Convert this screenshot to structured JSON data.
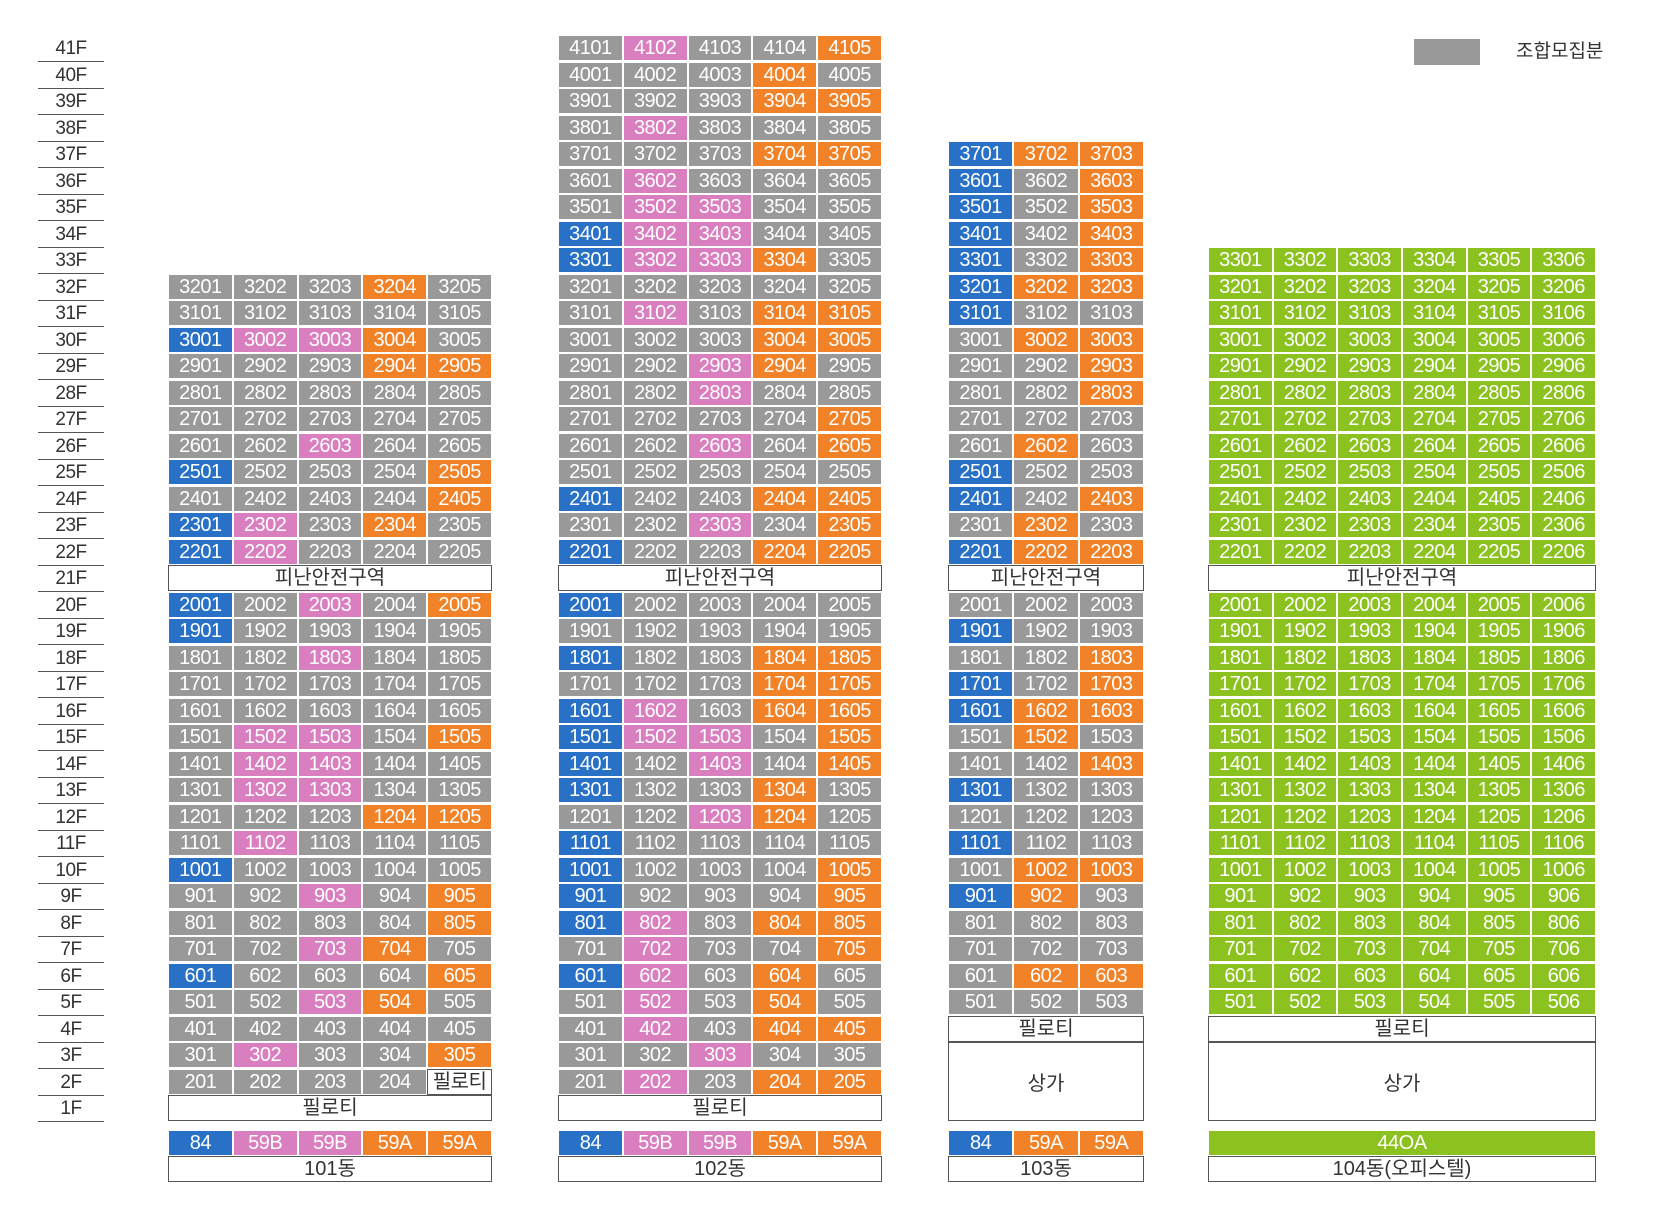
{
  "legend": {
    "label": "조합모집분",
    "color": "#999999"
  },
  "floor_labels": [
    "1F",
    "2F",
    "3F",
    "4F",
    "5F",
    "6F",
    "7F",
    "8F",
    "9F",
    "10F",
    "11F",
    "12F",
    "13F",
    "14F",
    "15F",
    "16F",
    "17F",
    "18F",
    "19F",
    "20F",
    "21F",
    "22F",
    "23F",
    "24F",
    "25F",
    "26F",
    "27F",
    "28F",
    "29F",
    "30F",
    "31F",
    "32F",
    "33F",
    "34F",
    "35F",
    "36F",
    "37F",
    "38F",
    "39F",
    "40F",
    "41F"
  ],
  "colors": {
    "gray": "#999999",
    "blue": "#2871c6",
    "pink": "#d97fc0",
    "orange": "#f28228",
    "green": "#8cc21f"
  },
  "chart_data": {
    "type": "table",
    "title": "",
    "buildings": [
      {
        "name": "101동",
        "columns": 5,
        "unit_types": [
          {
            "label": "84",
            "color": "blue"
          },
          {
            "label": "59B",
            "color": "pink"
          },
          {
            "label": "59B",
            "color": "pink"
          },
          {
            "label": "59A",
            "color": "orange"
          },
          {
            "label": "59A",
            "color": "orange"
          }
        ],
        "refuge_floor": 21,
        "refuge_label": "피난안전구역",
        "ground": [
          {
            "floor": 1,
            "label": "필로티"
          }
        ],
        "floors": {
          "2": [
            "gray",
            "gray",
            "gray",
            "gray",
            "white"
          ],
          "3": [
            "gray",
            "pink",
            "gray",
            "gray",
            "orange"
          ],
          "4": [
            "gray",
            "gray",
            "gray",
            "gray",
            "gray"
          ],
          "5": [
            "gray",
            "gray",
            "pink",
            "orange",
            "gray"
          ],
          "6": [
            "blue",
            "gray",
            "gray",
            "gray",
            "orange"
          ],
          "7": [
            "gray",
            "gray",
            "pink",
            "orange",
            "gray"
          ],
          "8": [
            "gray",
            "gray",
            "gray",
            "gray",
            "orange"
          ],
          "9": [
            "gray",
            "gray",
            "pink",
            "gray",
            "orange"
          ],
          "10": [
            "blue",
            "gray",
            "gray",
            "gray",
            "gray"
          ],
          "11": [
            "gray",
            "pink",
            "gray",
            "gray",
            "gray"
          ],
          "12": [
            "gray",
            "gray",
            "gray",
            "orange",
            "orange"
          ],
          "13": [
            "gray",
            "pink",
            "pink",
            "gray",
            "gray"
          ],
          "14": [
            "gray",
            "pink",
            "pink",
            "gray",
            "gray"
          ],
          "15": [
            "gray",
            "pink",
            "pink",
            "gray",
            "orange"
          ],
          "16": [
            "gray",
            "gray",
            "gray",
            "gray",
            "gray"
          ],
          "17": [
            "gray",
            "gray",
            "gray",
            "gray",
            "gray"
          ],
          "18": [
            "gray",
            "gray",
            "pink",
            "gray",
            "gray"
          ],
          "19": [
            "blue",
            "gray",
            "gray",
            "gray",
            "gray"
          ],
          "20": [
            "blue",
            "gray",
            "pink",
            "gray",
            "orange"
          ],
          "22": [
            "blue",
            "pink",
            "gray",
            "gray",
            "gray"
          ],
          "23": [
            "blue",
            "pink",
            "gray",
            "orange",
            "gray"
          ],
          "24": [
            "gray",
            "gray",
            "gray",
            "gray",
            "orange"
          ],
          "25": [
            "blue",
            "gray",
            "gray",
            "gray",
            "orange"
          ],
          "26": [
            "gray",
            "gray",
            "pink",
            "gray",
            "gray"
          ],
          "27": [
            "gray",
            "gray",
            "gray",
            "gray",
            "gray"
          ],
          "28": [
            "gray",
            "gray",
            "gray",
            "gray",
            "gray"
          ],
          "29": [
            "gray",
            "gray",
            "gray",
            "orange",
            "orange"
          ],
          "30": [
            "blue",
            "pink",
            "pink",
            "orange",
            "gray"
          ],
          "31": [
            "gray",
            "gray",
            "gray",
            "gray",
            "gray"
          ],
          "32": [
            "gray",
            "gray",
            "gray",
            "orange",
            "gray"
          ]
        },
        "text_overrides": {
          "2-5": "필로티"
        }
      },
      {
        "name": "102동",
        "columns": 5,
        "unit_types": [
          {
            "label": "84",
            "color": "blue"
          },
          {
            "label": "59B",
            "color": "pink"
          },
          {
            "label": "59B",
            "color": "pink"
          },
          {
            "label": "59A",
            "color": "orange"
          },
          {
            "label": "59A",
            "color": "orange"
          }
        ],
        "refuge_floor": 21,
        "refuge_label": "피난안전구역",
        "ground": [
          {
            "floor": 1,
            "label": "필로티"
          }
        ],
        "floors": {
          "2": [
            "gray",
            "pink",
            "gray",
            "orange",
            "orange"
          ],
          "3": [
            "gray",
            "gray",
            "pink",
            "gray",
            "gray"
          ],
          "4": [
            "gray",
            "pink",
            "gray",
            "orange",
            "orange"
          ],
          "5": [
            "gray",
            "pink",
            "gray",
            "orange",
            "gray"
          ],
          "6": [
            "blue",
            "pink",
            "gray",
            "orange",
            "gray"
          ],
          "7": [
            "gray",
            "pink",
            "gray",
            "gray",
            "orange"
          ],
          "8": [
            "blue",
            "pink",
            "gray",
            "orange",
            "orange"
          ],
          "9": [
            "blue",
            "gray",
            "gray",
            "gray",
            "orange"
          ],
          "10": [
            "blue",
            "gray",
            "gray",
            "gray",
            "orange"
          ],
          "11": [
            "blue",
            "gray",
            "gray",
            "gray",
            "gray"
          ],
          "12": [
            "gray",
            "gray",
            "pink",
            "orange",
            "gray"
          ],
          "13": [
            "blue",
            "gray",
            "gray",
            "orange",
            "gray"
          ],
          "14": [
            "blue",
            "gray",
            "pink",
            "gray",
            "orange"
          ],
          "15": [
            "blue",
            "pink",
            "pink",
            "gray",
            "orange"
          ],
          "16": [
            "blue",
            "pink",
            "gray",
            "orange",
            "orange"
          ],
          "17": [
            "gray",
            "gray",
            "gray",
            "orange",
            "orange"
          ],
          "18": [
            "blue",
            "gray",
            "gray",
            "orange",
            "orange"
          ],
          "19": [
            "gray",
            "gray",
            "gray",
            "gray",
            "gray"
          ],
          "20": [
            "blue",
            "gray",
            "gray",
            "gray",
            "gray"
          ],
          "22": [
            "blue",
            "gray",
            "gray",
            "orange",
            "orange"
          ],
          "23": [
            "gray",
            "gray",
            "pink",
            "gray",
            "orange"
          ],
          "24": [
            "blue",
            "gray",
            "gray",
            "orange",
            "orange"
          ],
          "25": [
            "gray",
            "gray",
            "gray",
            "gray",
            "gray"
          ],
          "26": [
            "gray",
            "gray",
            "pink",
            "gray",
            "orange"
          ],
          "27": [
            "gray",
            "gray",
            "gray",
            "gray",
            "orange"
          ],
          "28": [
            "gray",
            "gray",
            "pink",
            "gray",
            "gray"
          ],
          "29": [
            "gray",
            "gray",
            "pink",
            "orange",
            "gray"
          ],
          "30": [
            "gray",
            "gray",
            "gray",
            "orange",
            "orange"
          ],
          "31": [
            "gray",
            "pink",
            "gray",
            "orange",
            "orange"
          ],
          "32": [
            "gray",
            "gray",
            "gray",
            "gray",
            "gray"
          ],
          "33": [
            "blue",
            "pink",
            "pink",
            "orange",
            "gray"
          ],
          "34": [
            "blue",
            "pink",
            "pink",
            "gray",
            "gray"
          ],
          "35": [
            "gray",
            "pink",
            "pink",
            "gray",
            "gray"
          ],
          "36": [
            "gray",
            "pink",
            "gray",
            "gray",
            "gray"
          ],
          "37": [
            "gray",
            "gray",
            "gray",
            "orange",
            "orange"
          ],
          "38": [
            "gray",
            "pink",
            "gray",
            "gray",
            "gray"
          ],
          "39": [
            "gray",
            "gray",
            "gray",
            "orange",
            "orange"
          ],
          "40": [
            "gray",
            "gray",
            "gray",
            "orange",
            "gray"
          ],
          "41": [
            "gray",
            "pink",
            "gray",
            "gray",
            "orange"
          ]
        },
        "text_overrides": {}
      },
      {
        "name": "103동",
        "columns": 3,
        "unit_types": [
          {
            "label": "84",
            "color": "blue"
          },
          {
            "label": "59A",
            "color": "orange"
          },
          {
            "label": "59A",
            "color": "orange"
          }
        ],
        "refuge_floor": 21,
        "refuge_label": "피난안전구역",
        "ground": [
          {
            "floor": 4,
            "label": "필로티"
          },
          {
            "floor": 1,
            "span": 3,
            "label": "상가"
          }
        ],
        "floors": {
          "5": [
            "gray",
            "gray",
            "gray"
          ],
          "6": [
            "gray",
            "orange",
            "orange"
          ],
          "7": [
            "gray",
            "gray",
            "gray"
          ],
          "8": [
            "gray",
            "gray",
            "gray"
          ],
          "9": [
            "blue",
            "orange",
            "gray"
          ],
          "10": [
            "gray",
            "orange",
            "orange"
          ],
          "11": [
            "blue",
            "gray",
            "gray"
          ],
          "12": [
            "gray",
            "gray",
            "gray"
          ],
          "13": [
            "blue",
            "gray",
            "gray"
          ],
          "14": [
            "gray",
            "gray",
            "orange"
          ],
          "15": [
            "gray",
            "orange",
            "gray"
          ],
          "16": [
            "blue",
            "orange",
            "orange"
          ],
          "17": [
            "blue",
            "gray",
            "orange"
          ],
          "18": [
            "gray",
            "gray",
            "orange"
          ],
          "19": [
            "blue",
            "gray",
            "gray"
          ],
          "20": [
            "gray",
            "gray",
            "gray"
          ],
          "22": [
            "blue",
            "orange",
            "orange"
          ],
          "23": [
            "gray",
            "orange",
            "gray"
          ],
          "24": [
            "blue",
            "gray",
            "orange"
          ],
          "25": [
            "blue",
            "gray",
            "gray"
          ],
          "26": [
            "gray",
            "orange",
            "gray"
          ],
          "27": [
            "gray",
            "gray",
            "gray"
          ],
          "28": [
            "gray",
            "gray",
            "orange"
          ],
          "29": [
            "gray",
            "gray",
            "orange"
          ],
          "30": [
            "gray",
            "orange",
            "orange"
          ],
          "31": [
            "blue",
            "gray",
            "gray"
          ],
          "32": [
            "blue",
            "orange",
            "orange"
          ],
          "33": [
            "blue",
            "gray",
            "orange"
          ],
          "34": [
            "blue",
            "gray",
            "orange"
          ],
          "35": [
            "blue",
            "gray",
            "orange"
          ],
          "36": [
            "blue",
            "gray",
            "orange"
          ],
          "37": [
            "blue",
            "orange",
            "orange"
          ]
        },
        "text_overrides": {}
      },
      {
        "name": "104동(오피스텔)",
        "columns": 6,
        "unit_types": [
          {
            "label": "44OA",
            "color": "green",
            "span": 6
          }
        ],
        "refuge_floor": 21,
        "refuge_label": "피난안전구역",
        "ground": [
          {
            "floor": 4,
            "label": "필로티"
          },
          {
            "floor": 1,
            "span": 3,
            "label": "상가"
          }
        ],
        "all_green_from": 5,
        "all_green_to": 33,
        "floors": {},
        "text_overrides": {}
      }
    ]
  }
}
